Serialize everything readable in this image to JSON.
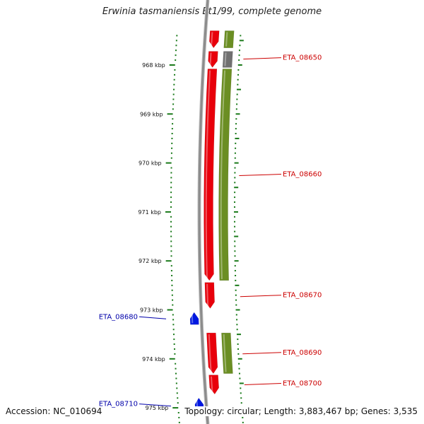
{
  "title": "Erwinia tasmaniensis Et1/99, complete genome",
  "footer": {
    "accession": "Accession: NC_010694",
    "stats": "Topology: circular; Length: 3,883,467 bp; Genes: 3,535"
  },
  "colors": {
    "forward_cds": "#e8000b",
    "reverse_cds": "#0018e0",
    "forward_gene": "#6b8e23",
    "reverse_gene": "#6b8e23",
    "rna": "#707070",
    "backbone": "#8c8c8c",
    "tick": "#1a7a1a",
    "forward_label": "#cc0000",
    "reverse_label": "#0000aa"
  },
  "axis": {
    "unit": "kbp",
    "ticks": [
      {
        "label": "968 kbp",
        "kbp": 968
      },
      {
        "label": "969 kbp",
        "kbp": 969
      },
      {
        "label": "970 kbp",
        "kbp": 970
      },
      {
        "label": "971 kbp",
        "kbp": 971
      },
      {
        "label": "972 kbp",
        "kbp": 972
      },
      {
        "label": "973 kbp",
        "kbp": 973
      },
      {
        "label": "974 kbp",
        "kbp": 974
      },
      {
        "label": "975 kbp",
        "kbp": 975
      }
    ]
  },
  "features": [
    {
      "track": "cds",
      "strand": "+",
      "start_kbp": 967.3,
      "end_kbp": 967.65
    },
    {
      "track": "gene",
      "strand": "+",
      "start_kbp": 967.3,
      "end_kbp": 967.65
    },
    {
      "track": "cds",
      "strand": "+",
      "start_kbp": 967.72,
      "end_kbp": 968.05
    },
    {
      "track": "rna",
      "strand": "+",
      "start_kbp": 967.72,
      "end_kbp": 968.05
    },
    {
      "track": "cds",
      "strand": "+",
      "start_kbp": 968.08,
      "end_kbp": 972.4
    },
    {
      "track": "gene",
      "strand": "+",
      "start_kbp": 968.08,
      "end_kbp": 972.4
    },
    {
      "track": "cds",
      "strand": "+",
      "start_kbp": 972.44,
      "end_kbp": 972.97
    },
    {
      "track": "cds",
      "strand": "+",
      "start_kbp": 973.47,
      "end_kbp": 974.3
    },
    {
      "track": "gene",
      "strand": "+",
      "start_kbp": 973.47,
      "end_kbp": 974.3
    },
    {
      "track": "cds",
      "strand": "+",
      "start_kbp": 974.33,
      "end_kbp": 974.72
    },
    {
      "track": "cds",
      "strand": "-",
      "start_kbp": 973.05,
      "end_kbp": 973.3
    },
    {
      "track": "cds",
      "strand": "-",
      "start_kbp": 974.8,
      "end_kbp": 975.05
    }
  ],
  "labels": [
    {
      "text": "ETA_08650",
      "strand": "+",
      "at_kbp": 967.85
    },
    {
      "text": "ETA_08660",
      "strand": "+",
      "at_kbp": 970.23
    },
    {
      "text": "ETA_08670",
      "strand": "+",
      "at_kbp": 972.7
    },
    {
      "text": "ETA_08680",
      "strand": "-",
      "at_kbp": 973.17
    },
    {
      "text": "ETA_08690",
      "strand": "+",
      "at_kbp": 973.87
    },
    {
      "text": "ETA_08700",
      "strand": "+",
      "at_kbp": 974.5
    },
    {
      "text": "ETA_08710",
      "strand": "-",
      "at_kbp": 974.95
    }
  ]
}
